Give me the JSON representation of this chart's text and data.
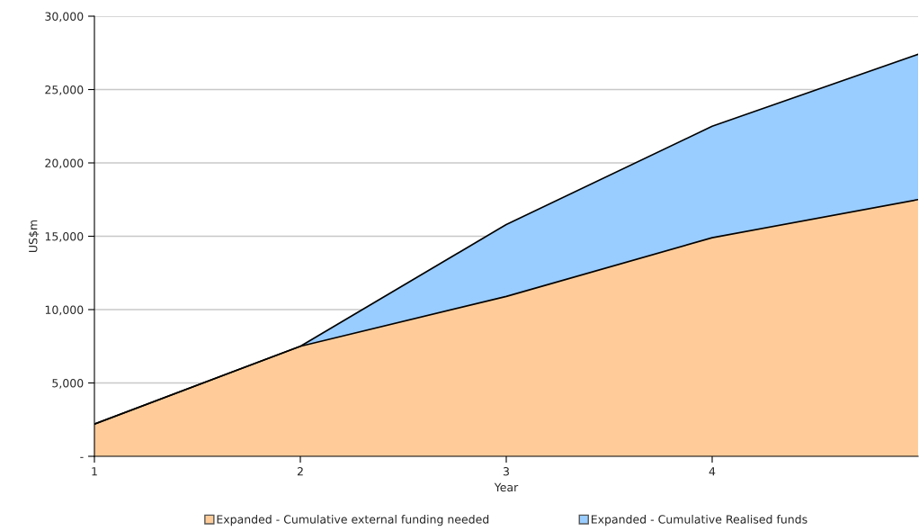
{
  "chart_data": {
    "type": "area",
    "stacked": true,
    "xlabel": "Year",
    "ylabel": "US$m",
    "x": [
      1,
      2,
      3,
      4,
      5
    ],
    "series": [
      {
        "name": "Expanded - Cumulative external funding needed",
        "color": "#ffcc99",
        "values": [
          2200,
          7500,
          10900,
          14900,
          17500
        ]
      },
      {
        "name": "Expanded - Cumulative Realised funds",
        "color": "#99ccff",
        "values": [
          0,
          0,
          4900,
          7600,
          9900
        ]
      }
    ],
    "xlim": [
      1,
      5
    ],
    "xticks": [
      1,
      2,
      3,
      4
    ],
    "ylim": [
      0,
      30000
    ],
    "yticks": [
      {
        "value": 0,
        "label": "-"
      },
      {
        "value": 5000,
        "label": "5,000"
      },
      {
        "value": 10000,
        "label": "10,000"
      },
      {
        "value": 15000,
        "label": "15,000"
      },
      {
        "value": 20000,
        "label": "20,000"
      },
      {
        "value": 25000,
        "label": "25,000"
      },
      {
        "value": 30000,
        "label": "30,000"
      }
    ],
    "grid": "y",
    "legend": "bottom"
  }
}
